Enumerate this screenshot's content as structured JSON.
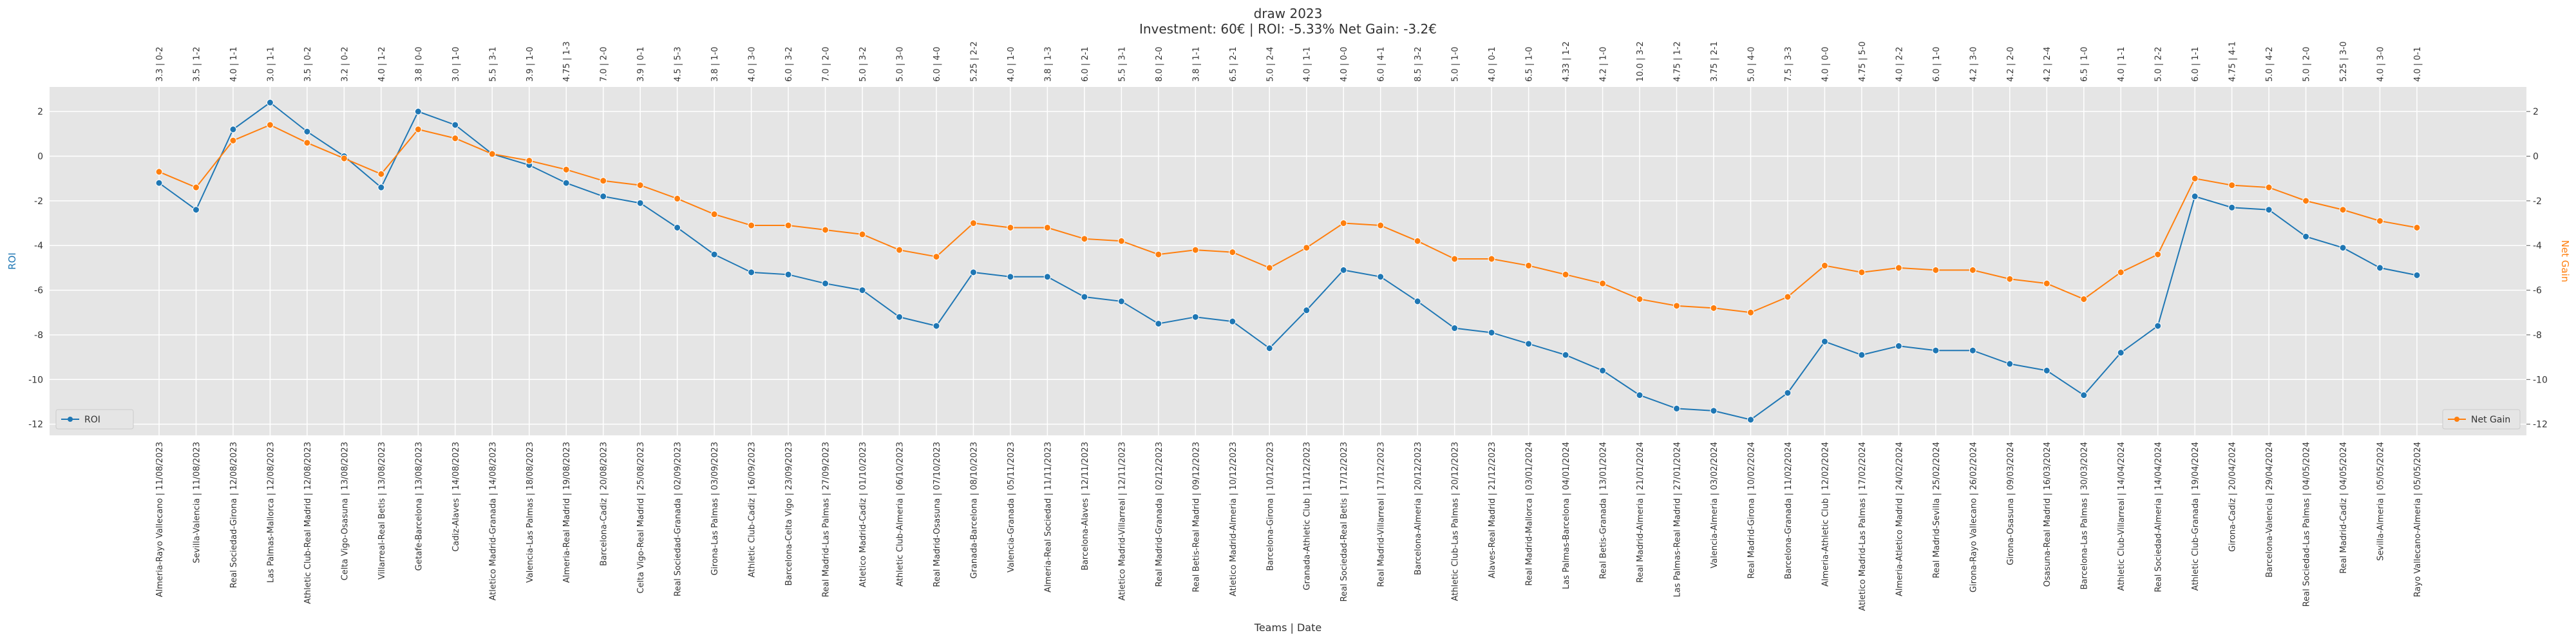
{
  "chart_data": {
    "type": "line",
    "title": "draw 2023",
    "subtitle": "Investment: 60€ | ROI: -5.33% Net Gain: -3.2€",
    "xlabel": "Teams | Date",
    "ylabel": "ROI",
    "y2label": "Net Gain",
    "categories": [
      "Almeria-Rayo Vallecano | 11/08/2023",
      "Sevilla-Valencia | 11/08/2023",
      "Real Sociedad-Girona | 12/08/2023",
      "Las Palmas-Mallorca | 12/08/2023",
      "Athletic Club-Real Madrid | 12/08/2023",
      "Celta Vigo-Osasuna | 13/08/2023",
      "Villarreal-Real Betis | 13/08/2023",
      "Getafe-Barcelona | 13/08/2023",
      "Cadiz-Alaves | 14/08/2023",
      "Atletico Madrid-Granada | 14/08/2023",
      "Valencia-Las Palmas | 18/08/2023",
      "Almeria-Real Madrid | 19/08/2023",
      "Barcelona-Cadiz | 20/08/2023",
      "Celta Vigo-Real Madrid | 25/08/2023",
      "Real Sociedad-Granada | 02/09/2023",
      "Girona-Las Palmas | 03/09/2023",
      "Athletic Club-Cadiz | 16/09/2023",
      "Barcelona-Celta Vigo | 23/09/2023",
      "Real Madrid-Las Palmas | 27/09/2023",
      "Atletico Madrid-Cadiz | 01/10/2023",
      "Athletic Club-Almeria | 06/10/2023",
      "Real Madrid-Osasuna | 07/10/2023",
      "Granada-Barcelona | 08/10/2023",
      "Valencia-Granada | 05/11/2023",
      "Almeria-Real Sociedad | 11/11/2023",
      "Barcelona-Alaves | 12/11/2023",
      "Atletico Madrid-Villarreal | 12/11/2023",
      "Real Madrid-Granada | 02/12/2023",
      "Real Betis-Real Madrid | 09/12/2023",
      "Atletico Madrid-Almeria | 10/12/2023",
      "Barcelona-Girona | 10/12/2023",
      "Granada-Athletic Club | 11/12/2023",
      "Real Sociedad-Real Betis | 17/12/2023",
      "Real Madrid-Villarreal | 17/12/2023",
      "Barcelona-Almeria | 20/12/2023",
      "Athletic Club-Las Palmas | 20/12/2023",
      "Alaves-Real Madrid | 21/12/2023",
      "Real Madrid-Mallorca | 03/01/2024",
      "Las Palmas-Barcelona | 04/01/2024",
      "Real Betis-Granada | 13/01/2024",
      "Real Madrid-Almeria | 21/01/2024",
      "Las Palmas-Real Madrid | 27/01/2024",
      "Valencia-Almeria | 03/02/2024",
      "Real Madrid-Girona | 10/02/2024",
      "Barcelona-Granada | 11/02/2024",
      "Almeria-Athletic Club | 12/02/2024",
      "Atletico Madrid-Las Palmas | 17/02/2024",
      "Almeria-Atletico Madrid | 24/02/2024",
      "Real Madrid-Sevilla | 25/02/2024",
      "Girona-Rayo Vallecano | 26/02/2024",
      "Girona-Osasuna | 09/03/2024",
      "Osasuna-Real Madrid | 16/03/2024",
      "Barcelona-Las Palmas | 30/03/2024",
      "Athletic Club-Villarreal | 14/04/2024",
      "Real Sociedad-Almeria | 14/04/2024",
      "Athletic Club-Granada | 19/04/2024",
      "Girona-Cadiz | 20/04/2024",
      "Barcelona-Valencia | 29/04/2024",
      "Real Sociedad-Las Palmas | 04/05/2024",
      "Real Madrid-Cadiz | 04/05/2024",
      "Sevilla-Almeria | 05/05/2024",
      "Rayo Vallecano-Almeria | 05/05/2024"
    ],
    "top_categories": [
      "3.3 | 0-2",
      "3.5 | 1-2",
      "4.0 | 1-1",
      "3.0 | 1-1",
      "3.5 | 0-2",
      "3.2 | 0-2",
      "4.0 | 1-2",
      "3.8 | 0-0",
      "3.0 | 1-0",
      "5.5 | 3-1",
      "3.9 | 1-0",
      "4.75 | 1-3",
      "7.0 | 2-0",
      "3.9 | 0-1",
      "4.5 | 5-3",
      "3.8 | 1-0",
      "4.0 | 3-0",
      "6.0 | 3-2",
      "7.0 | 2-0",
      "5.0 | 3-2",
      "5.0 | 3-0",
      "6.0 | 4-0",
      "5.25 | 2-2",
      "4.0 | 1-0",
      "3.8 | 1-3",
      "6.0 | 2-1",
      "5.5 | 3-1",
      "8.0 | 2-0",
      "3.8 | 1-1",
      "6.5 | 2-1",
      "5.0 | 2-4",
      "4.0 | 1-1",
      "4.0 | 0-0",
      "6.0 | 4-1",
      "8.5 | 3-2",
      "5.0 | 1-0",
      "4.0 | 0-1",
      "6.5 | 1-0",
      "4.33 | 1-2",
      "4.2 | 1-0",
      "10.0 | 3-2",
      "4.75 | 1-2",
      "3.75 | 2-1",
      "5.0 | 4-0",
      "7.5 | 3-3",
      "4.0 | 0-0",
      "4.75 | 5-0",
      "4.0 | 2-2",
      "6.0 | 1-0",
      "4.2 | 3-0",
      "4.2 | 2-0",
      "4.2 | 2-4",
      "6.5 | 1-0",
      "4.0 | 1-1",
      "5.0 | 2-2",
      "6.0 | 1-1",
      "4.75 | 4-1",
      "5.0 | 4-2",
      "5.0 | 2-0",
      "5.25 | 3-0",
      "4.0 | 3-0",
      "4.0 | 0-1"
    ],
    "series": [
      {
        "name": "ROI",
        "color": "#1f77b4",
        "axis": "y",
        "legend_loc": "lower left",
        "values": [
          -1.2,
          -2.4,
          1.2,
          2.4,
          1.1,
          0,
          -1.4,
          2.0,
          1.4,
          0.1,
          -0.4,
          -1.2,
          -1.8,
          -2.1,
          -3.2,
          -4.4,
          -5.2,
          -5.3,
          -5.7,
          -6.0,
          -7.2,
          -7.6,
          -5.2,
          -5.4,
          -5.4,
          -6.3,
          -6.5,
          -7.5,
          -7.2,
          -7.4,
          -8.6,
          -6.9,
          -5.1,
          -5.4,
          -6.5,
          -7.7,
          -7.9,
          -8.4,
          -8.9,
          -9.6,
          -10.7,
          -11.3,
          -11.4,
          -11.8,
          -10.6,
          -8.3,
          -8.9,
          -8.5,
          -8.7,
          -8.7,
          -9.3,
          -9.6,
          -10.7,
          -8.8,
          -7.6,
          -1.8,
          -2.3,
          -2.4,
          -3.6,
          -4.1,
          -5.0,
          -5.33
        ]
      },
      {
        "name": "Net Gain",
        "color": "#ff7f0e",
        "axis": "y2",
        "legend_loc": "lower right",
        "values": [
          -0.7,
          -1.4,
          0.7,
          1.4,
          0.6,
          -0.1,
          -0.8,
          1.2,
          0.8,
          0.1,
          -0.2,
          -0.6,
          -1.1,
          -1.3,
          -1.9,
          -2.6,
          -3.1,
          -3.1,
          -3.3,
          -3.5,
          -4.2,
          -4.5,
          -3.0,
          -3.2,
          -3.2,
          -3.7,
          -3.8,
          -4.4,
          -4.2,
          -4.3,
          -5.0,
          -4.1,
          -3.0,
          -3.1,
          -3.8,
          -4.6,
          -4.6,
          -4.9,
          -5.3,
          -5.7,
          -6.4,
          -6.7,
          -6.8,
          -7.0,
          -6.3,
          -4.9,
          -5.2,
          -5.0,
          -5.1,
          -5.1,
          -5.5,
          -5.7,
          -6.4,
          -5.2,
          -4.4,
          -1.0,
          -1.3,
          -1.4,
          -2.0,
          -2.4,
          -2.9,
          -3.2
        ]
      }
    ],
    "ylim": [
      -12.5,
      3.1
    ],
    "yticks": [
      -12,
      -10,
      -8,
      -6,
      -4,
      -2,
      0,
      2
    ],
    "y2lim": [
      -12.5,
      3.1
    ],
    "y2ticks": [
      -12,
      -10,
      -8,
      -6,
      -4,
      -2,
      0,
      2
    ],
    "grid": true
  }
}
